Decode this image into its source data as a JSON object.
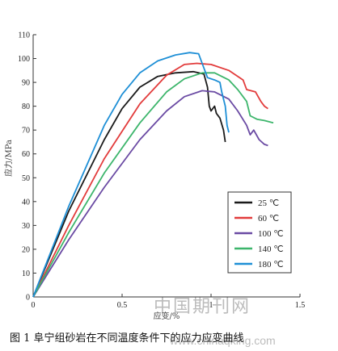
{
  "chart_data": {
    "type": "line",
    "ylabel": "应力/MPa",
    "xlabel": "应变/%",
    "xlim": [
      0,
      1.5
    ],
    "ylim": [
      0,
      110
    ],
    "xticks": [
      "0",
      "0.5",
      "1",
      "1.5"
    ],
    "yticks": [
      "0",
      "10",
      "20",
      "30",
      "40",
      "50",
      "60",
      "70",
      "80",
      "90",
      "100",
      "110"
    ],
    "legend_position": "lower-right",
    "series": [
      {
        "name": "25 ℃",
        "color": "#1a1a1a",
        "points": [
          [
            0,
            0
          ],
          [
            0.2,
            36
          ],
          [
            0.4,
            66
          ],
          [
            0.5,
            79
          ],
          [
            0.6,
            88
          ],
          [
            0.7,
            92.5
          ],
          [
            0.8,
            94
          ],
          [
            0.9,
            94.5
          ],
          [
            0.96,
            93.5
          ],
          [
            0.98,
            88
          ],
          [
            0.99,
            80
          ],
          [
            1.0,
            78
          ],
          [
            1.02,
            80
          ],
          [
            1.03,
            77
          ],
          [
            1.05,
            75
          ],
          [
            1.07,
            70
          ],
          [
            1.08,
            65
          ]
        ]
      },
      {
        "name": "60 ℃",
        "color": "#e23b3b",
        "points": [
          [
            0,
            0
          ],
          [
            0.2,
            30
          ],
          [
            0.4,
            58
          ],
          [
            0.6,
            81
          ],
          [
            0.75,
            93
          ],
          [
            0.85,
            97.5
          ],
          [
            0.92,
            98
          ],
          [
            1.0,
            97.5
          ],
          [
            1.1,
            95
          ],
          [
            1.18,
            91
          ],
          [
            1.2,
            87
          ],
          [
            1.25,
            86
          ],
          [
            1.28,
            82
          ],
          [
            1.3,
            80
          ],
          [
            1.32,
            79
          ]
        ]
      },
      {
        "name": "100 ℃",
        "color": "#6a4aa3",
        "points": [
          [
            0,
            0
          ],
          [
            0.2,
            24
          ],
          [
            0.4,
            46
          ],
          [
            0.6,
            66
          ],
          [
            0.75,
            78
          ],
          [
            0.85,
            84
          ],
          [
            0.95,
            86.5
          ],
          [
            1.02,
            86
          ],
          [
            1.1,
            83
          ],
          [
            1.15,
            78
          ],
          [
            1.2,
            72
          ],
          [
            1.22,
            68
          ],
          [
            1.24,
            70
          ],
          [
            1.27,
            66
          ],
          [
            1.3,
            64
          ],
          [
            1.32,
            63.5
          ]
        ]
      },
      {
        "name": "140 ℃",
        "color": "#3cb56b",
        "points": [
          [
            0,
            0
          ],
          [
            0.2,
            27
          ],
          [
            0.4,
            52
          ],
          [
            0.6,
            73
          ],
          [
            0.75,
            86
          ],
          [
            0.85,
            91.5
          ],
          [
            0.95,
            94
          ],
          [
            1.02,
            94
          ],
          [
            1.1,
            91
          ],
          [
            1.15,
            87
          ],
          [
            1.2,
            82
          ],
          [
            1.22,
            76
          ],
          [
            1.26,
            74.5
          ],
          [
            1.3,
            74
          ],
          [
            1.35,
            73
          ]
        ]
      },
      {
        "name": "180 ℃",
        "color": "#1e8fd6",
        "points": [
          [
            0,
            0
          ],
          [
            0.2,
            38
          ],
          [
            0.4,
            72
          ],
          [
            0.5,
            85
          ],
          [
            0.6,
            94
          ],
          [
            0.7,
            99
          ],
          [
            0.8,
            101.5
          ],
          [
            0.88,
            102.5
          ],
          [
            0.93,
            102
          ],
          [
            0.95,
            98
          ],
          [
            0.98,
            92
          ],
          [
            1.02,
            91
          ],
          [
            1.05,
            90
          ],
          [
            1.06,
            86
          ],
          [
            1.08,
            80
          ],
          [
            1.09,
            72
          ],
          [
            1.1,
            69
          ]
        ]
      }
    ]
  },
  "caption": "图 1  阜宁组砂岩在不同温度条件下的应力应变曲线",
  "watermark": "中国期刊网",
  "watermark_url": "www.chinaqking.com"
}
